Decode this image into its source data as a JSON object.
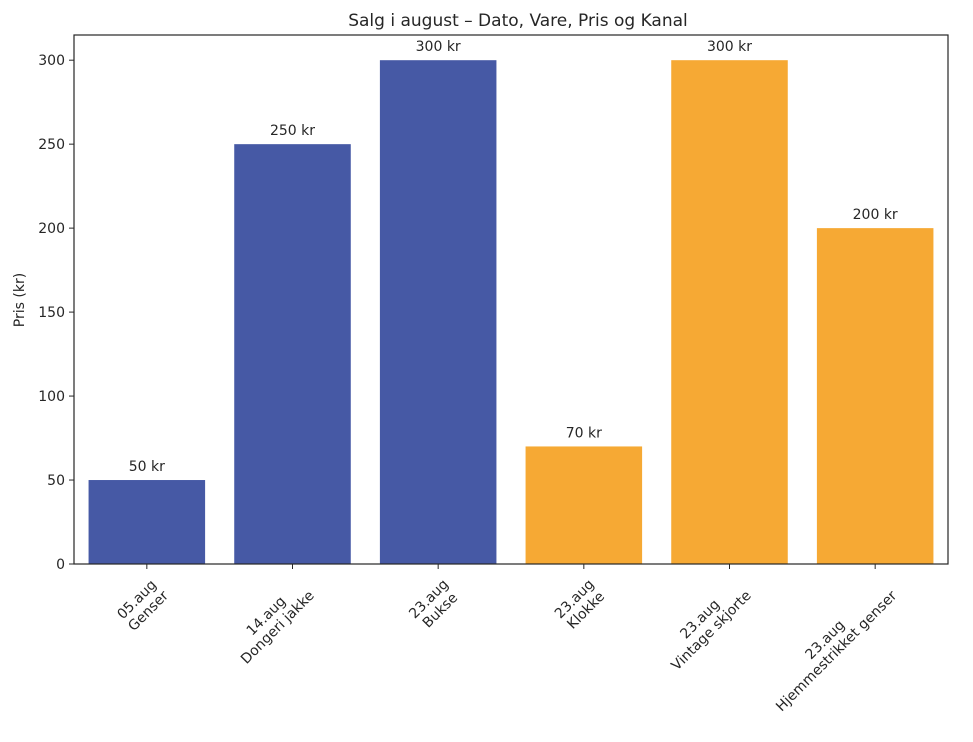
{
  "chart_data": {
    "type": "bar",
    "title": "Salg i august – Dato, Vare, Pris og Kanal",
    "xlabel": "",
    "ylabel": "Pris (kr)",
    "ylim": [
      0,
      315
    ],
    "yticks": [
      0,
      50,
      100,
      150,
      200,
      250,
      300
    ],
    "categories": [
      [
        "05.aug",
        "Genser"
      ],
      [
        "14.aug",
        "Dongeri jakke"
      ],
      [
        "23.aug",
        "Bukse"
      ],
      [
        "23.aug",
        "Klokke"
      ],
      [
        "23.aug",
        "Vintage skjorte"
      ],
      [
        "23.aug",
        "Hjemmestrikket genser"
      ]
    ],
    "values": [
      50,
      250,
      300,
      70,
      300,
      200
    ],
    "data_labels": [
      "50 kr",
      "250 kr",
      "300 kr",
      "70 kr",
      "300 kr",
      "200 kr"
    ],
    "bar_colors": [
      "#4659a5",
      "#4659a5",
      "#4659a5",
      "#f6a934",
      "#f6a934",
      "#f6a934"
    ],
    "grid": false,
    "legend": "none"
  }
}
